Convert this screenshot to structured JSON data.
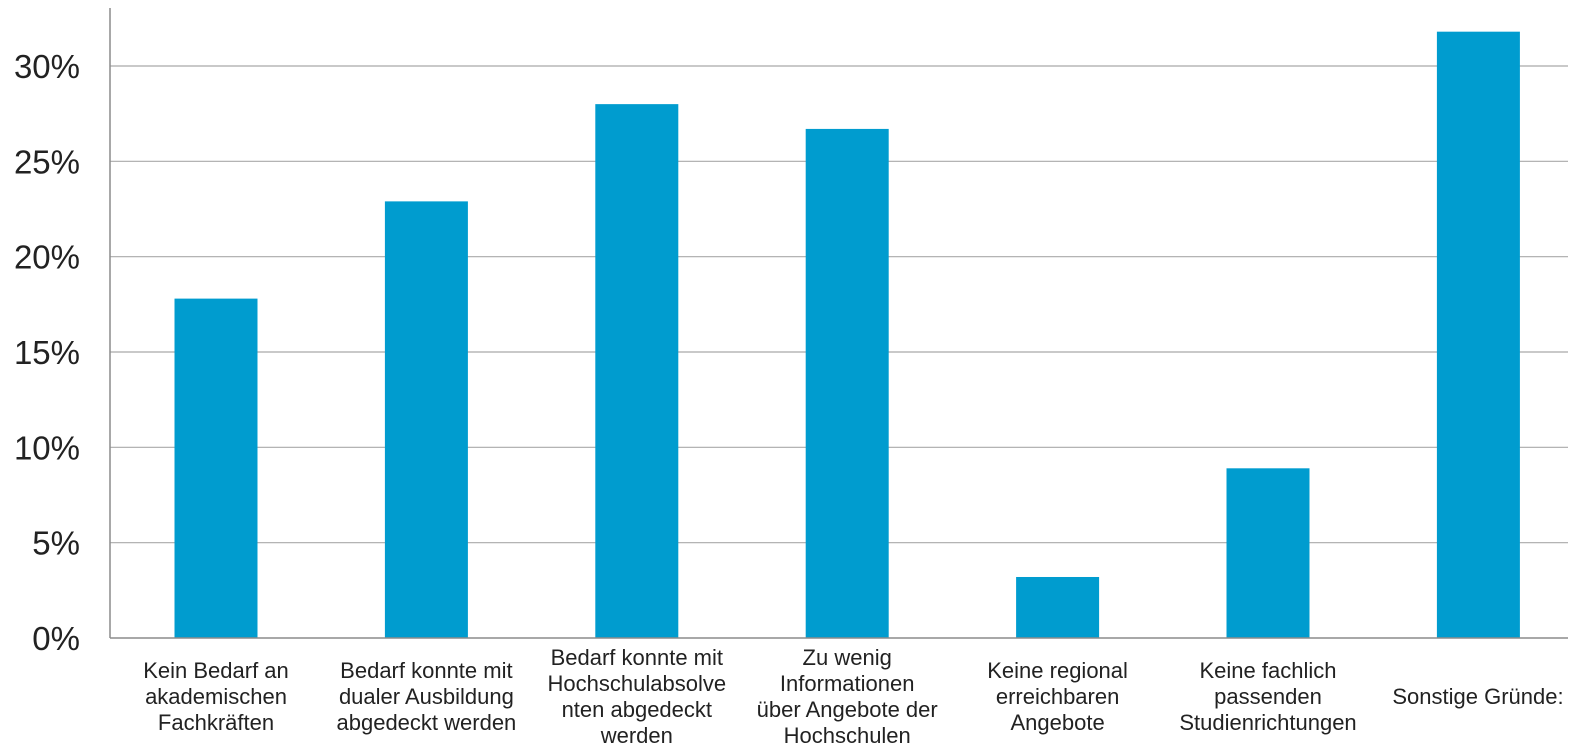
{
  "chart_data": {
    "type": "bar",
    "title": "",
    "xlabel": "",
    "ylabel": "",
    "ylim": [
      0,
      32
    ],
    "yticks": [
      0,
      5,
      10,
      15,
      20,
      25,
      30
    ],
    "ytick_labels": [
      "0%",
      "5%",
      "10%",
      "15%",
      "20%",
      "25%",
      "30%"
    ],
    "grid": true,
    "bar_color": "#009ccf",
    "categories": [
      [
        "Kein Bedarf an",
        "akademischen",
        "Fachkräften"
      ],
      [
        "Bedarf konnte mit",
        "dualer Ausbildung",
        "abgedeckt werden"
      ],
      [
        "Bedarf konnte mit",
        "Hochschulabsolve",
        "nten abgedeckt",
        "werden"
      ],
      [
        "Zu wenig",
        "Informationen",
        "über Angebote der",
        "Hochschulen"
      ],
      [
        "Keine regional",
        "erreichbaren",
        "Angebote"
      ],
      [
        "Keine fachlich",
        "passenden",
        "Studienrichtungen"
      ],
      [
        "Sonstige Gründe:"
      ]
    ],
    "values": [
      17.8,
      22.9,
      28.0,
      26.7,
      3.2,
      8.9,
      31.8
    ]
  }
}
